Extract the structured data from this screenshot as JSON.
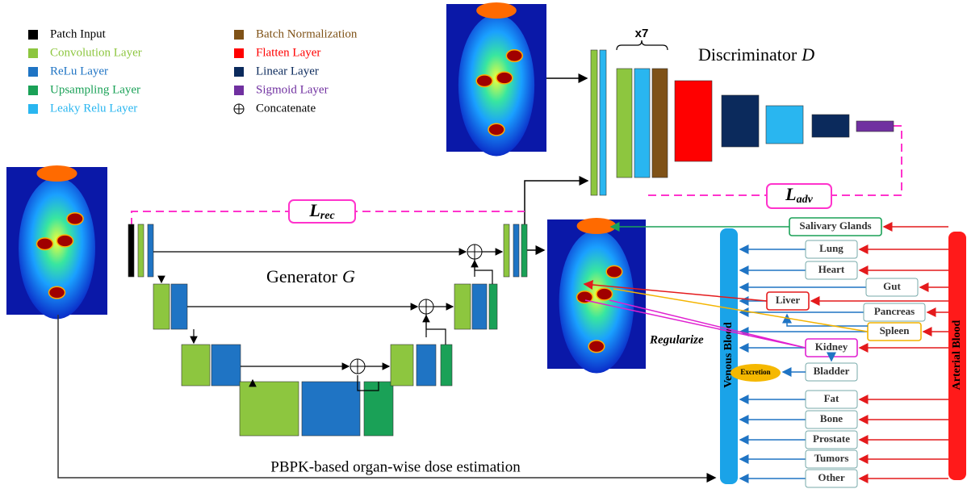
{
  "legend": [
    {
      "label": "Patch Input",
      "color": "#000000"
    },
    {
      "label": "Convolution Layer",
      "color": "#8dc63f"
    },
    {
      "label": "ReLu Layer",
      "color": "#1f74c4"
    },
    {
      "label": "Upsampling Layer",
      "color": "#1aa157"
    },
    {
      "label": "Leaky Relu Layer",
      "color": "#29b6f0"
    },
    {
      "label": "Batch Normalization",
      "color": "#7f5217"
    },
    {
      "label": "Flatten Layer",
      "color": "#ff0000"
    },
    {
      "label": "Linear Layer",
      "color": "#0b2a5c"
    },
    {
      "label": "Sigmoid Layer",
      "color": "#7030a0"
    },
    {
      "label": "Concatenate"
    }
  ],
  "discriminator": {
    "text": "Discriminator",
    "symbol": "D",
    "repeat": "x7"
  },
  "generator": {
    "text": "Generator",
    "symbol": "G"
  },
  "loss_rec": {
    "symbol": "L",
    "subscript": "rec"
  },
  "loss_adv": {
    "symbol": "L",
    "subscript": "adv"
  },
  "regularize": "Regularize",
  "pbpk_caption": "PBPK-based organ-wise dose estimation",
  "venous": "Venous Blood",
  "arterial": "Arterial Blood",
  "organs": [
    "Salivary Glands",
    "Lung",
    "Heart",
    "Gut",
    "Liver",
    "Pancreas",
    "Spleen",
    "Kidney",
    "Bladder",
    "Fat",
    "Bone",
    "Prostate",
    "Tumors",
    "Other"
  ],
  "excretion": "Excretion"
}
